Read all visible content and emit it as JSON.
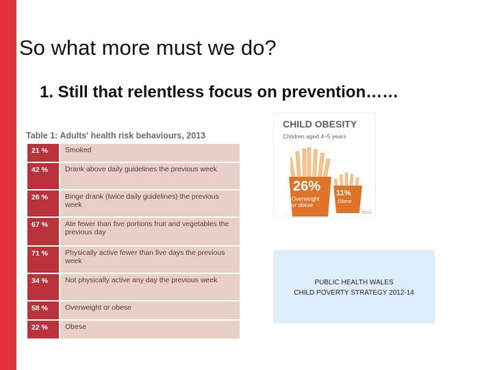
{
  "slide": {
    "title": "So what more must we do?",
    "subtitle": "1. Still that relentless focus on prevention……",
    "accent_color": "#e0303a"
  },
  "table": {
    "title": "Table 1: Adults' health risk behaviours, 2013",
    "rows": [
      {
        "pct": "21 %",
        "desc": "Smoked"
      },
      {
        "pct": "42 %",
        "desc": "Drank above daily guidelines the previous week"
      },
      {
        "pct": "26 %",
        "desc": "Binge drank (twice daily guidelines) the previous week"
      },
      {
        "pct": "67 %",
        "desc": "Ate fewer than five portions fruit and vegetables the previous day"
      },
      {
        "pct": "71 %",
        "desc": "Physically active fewer than five days the previous week"
      },
      {
        "pct": "34 %",
        "desc": "Not physically active any day the previous week"
      },
      {
        "pct": "58 %",
        "desc": "Overweight or obese"
      },
      {
        "pct": "22 %",
        "desc": "Obese"
      }
    ]
  },
  "obesity": {
    "title": "CHILD OBESITY",
    "subtitle": "Children aged 4–5 years",
    "big_value": "26%",
    "big_label_1": "Overweight",
    "big_label_2": "or obese",
    "small_value": "11%",
    "small_label": "Obese",
    "year": "2013"
  },
  "note_box": {
    "line1": "PUBLIC HEALTH WALES",
    "line2": "CHILD POVERTY STRATEGY 2012-14"
  }
}
